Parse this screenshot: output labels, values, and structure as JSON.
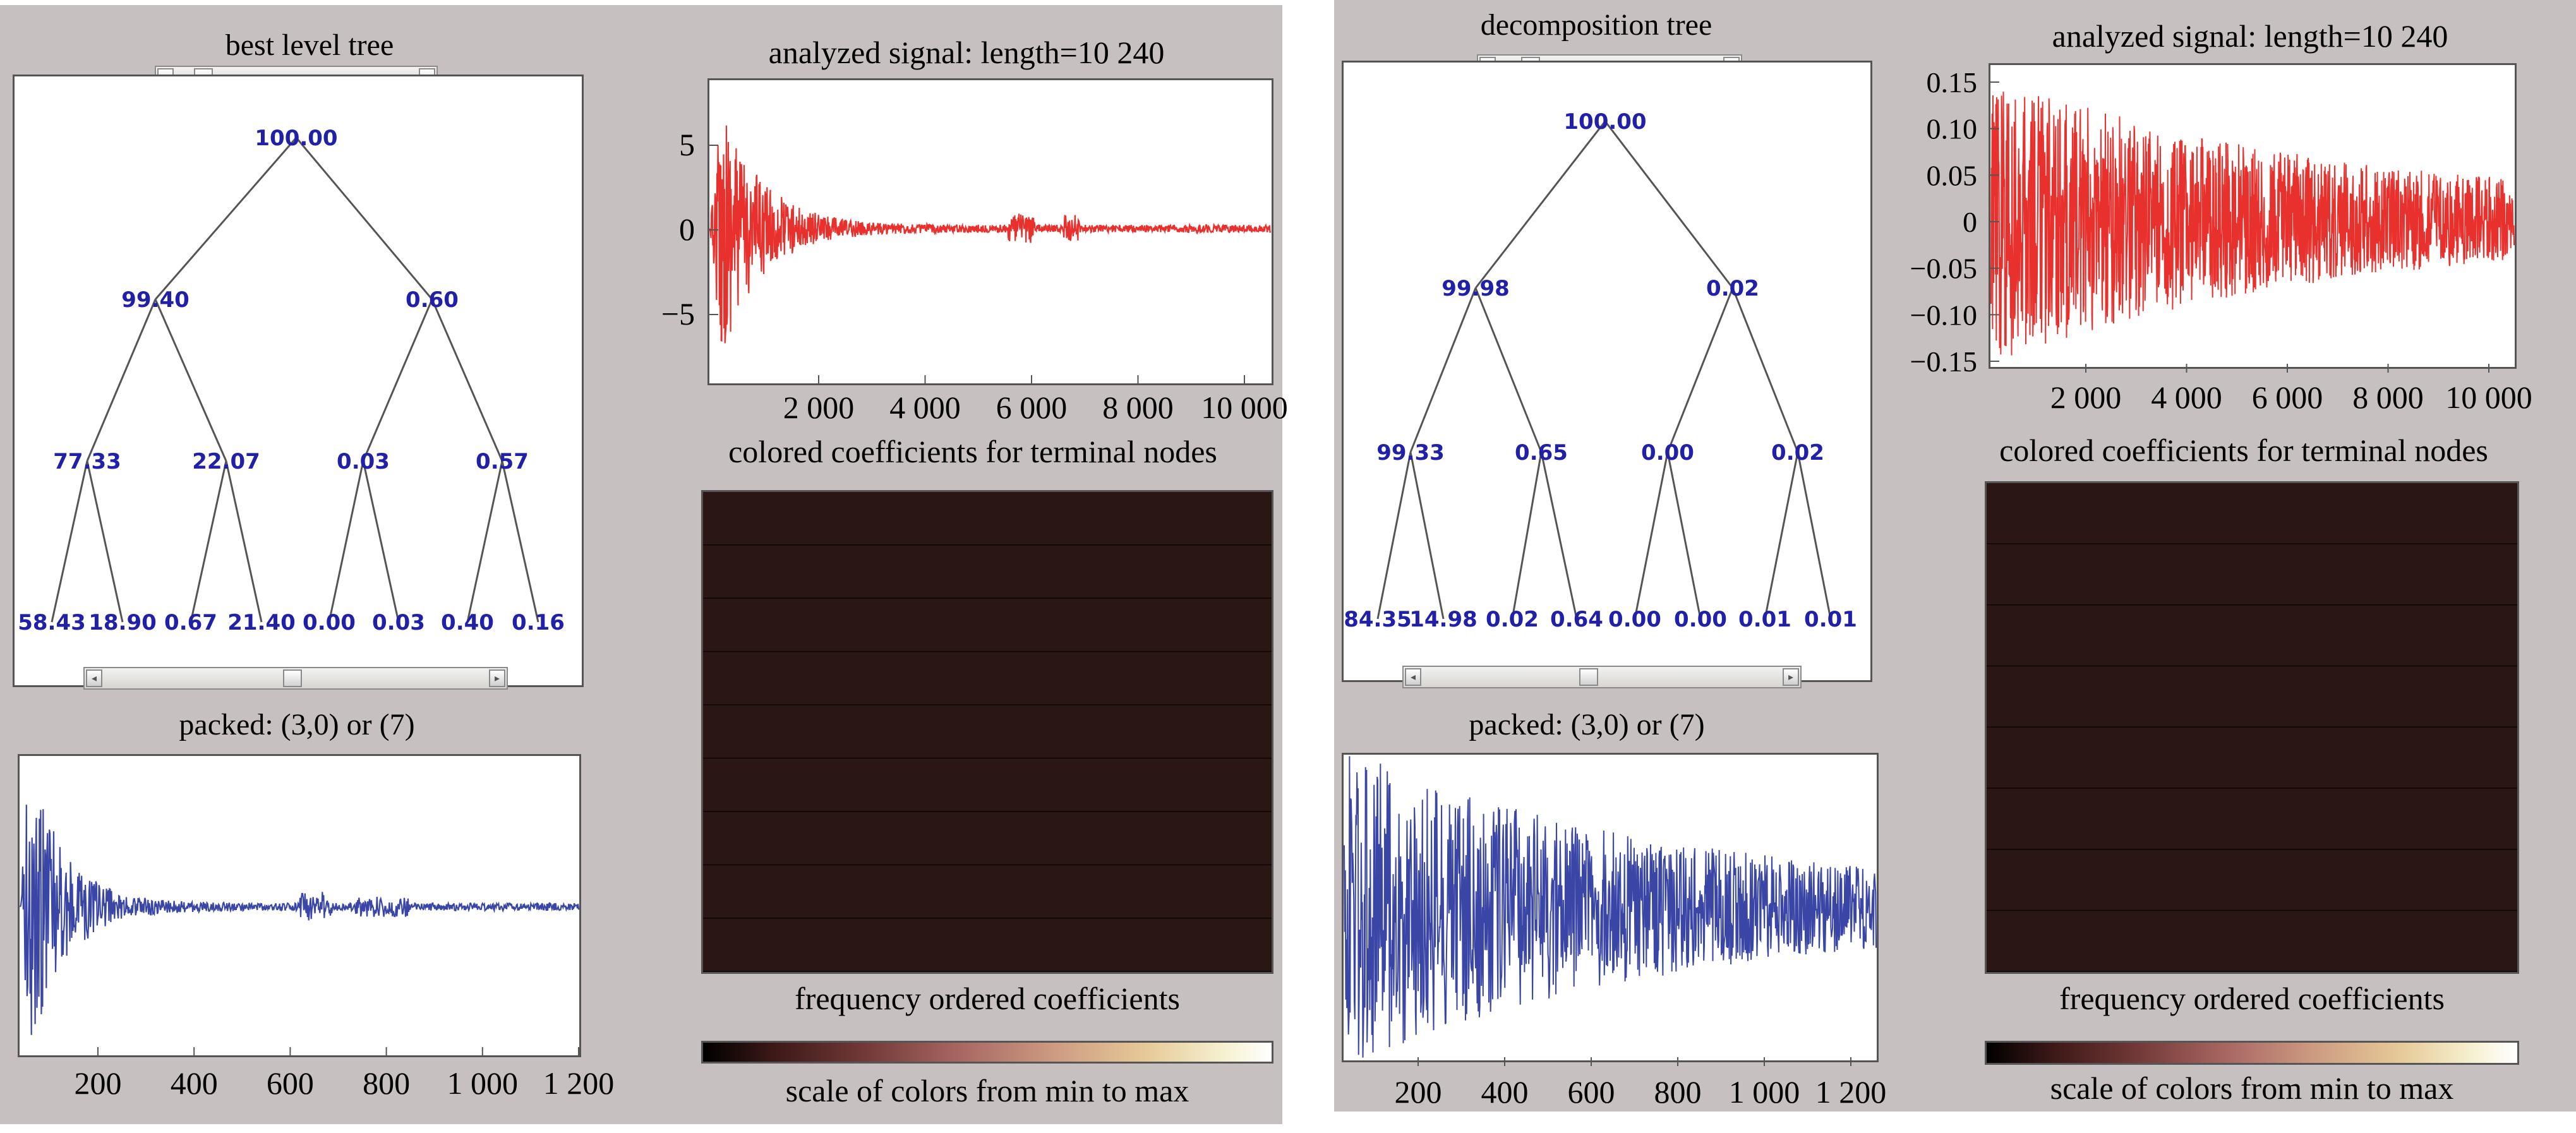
{
  "left": {
    "tree_title": "best level tree",
    "tree_nodes": [
      "100.00",
      "99.40",
      "0.60",
      "77.33",
      "22.07",
      "0.03",
      "0.57",
      "58.43",
      "18.90",
      "0.67",
      "21.40",
      "0.00",
      "0.03",
      "0.40",
      "0.16"
    ],
    "packed_title": "packed: (3,0) or (7)",
    "packed_xticks": [
      "200",
      "400",
      "600",
      "800",
      "1 000",
      "1 200"
    ],
    "signal_title": "analyzed signal: length=10 240",
    "signal_yticks": [
      "5",
      "0",
      "−5"
    ],
    "signal_xticks": [
      "2 000",
      "4 000",
      "6 000",
      "8 000",
      "10 000"
    ],
    "coef_title": "colored coefficients for terminal nodes",
    "freq_title": "frequency ordered coefficients",
    "scale_title": "scale of colors from min to max"
  },
  "right": {
    "tree_title": "decomposition tree",
    "tree_nodes": [
      "100.00",
      "99.98",
      "0.02",
      "99.33",
      "0.65",
      "0.00",
      "0.02",
      "84.35",
      "14.98",
      "0.02",
      "0.64",
      "0.00",
      "0.00",
      "0.01",
      "0.01"
    ],
    "packed_title": "packed: (3,0) or (7)",
    "packed_xticks": [
      "200",
      "400",
      "600",
      "800",
      "1 000",
      "1 200"
    ],
    "signal_title": "analyzed signal: length=10 240",
    "signal_yticks": [
      "0.15",
      "0.10",
      "0.05",
      "0",
      "−0.05",
      "−0.10",
      "−0.15"
    ],
    "signal_xticks": [
      "2 000",
      "4 000",
      "6 000",
      "8 000",
      "10 000"
    ],
    "coef_title": "colored coefficients for terminal nodes",
    "freq_title": "frequency ordered coefficients",
    "scale_title": "scale of colors from min to max"
  },
  "colors": {
    "panel_bg": "#c6c0c0",
    "signal_red": "#e8302c",
    "packed_blue": "#3a46a6",
    "tree_node": "#2020a8",
    "heat_bg": "#2a1612"
  }
}
